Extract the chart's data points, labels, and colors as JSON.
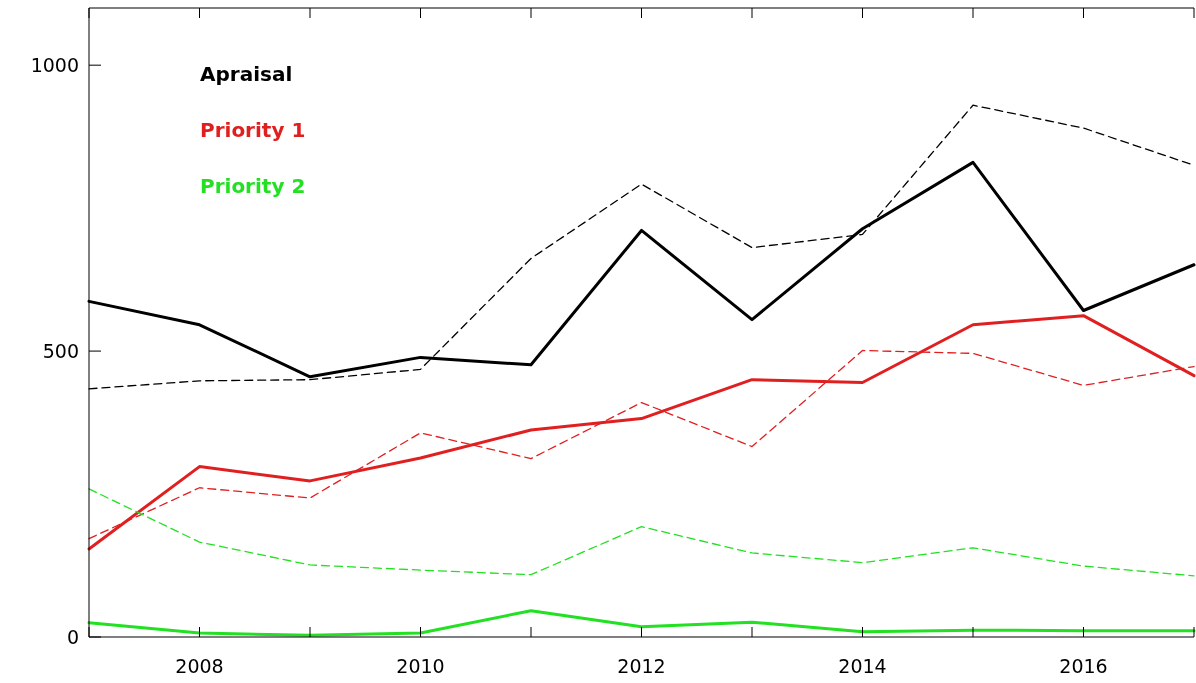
{
  "chart_data": {
    "type": "line",
    "x": [
      2007,
      2008,
      2009,
      2010,
      2011,
      2012,
      2013,
      2014,
      2015,
      2016,
      2017
    ],
    "series": [
      {
        "name": "Apraisal",
        "color": "#000000",
        "line_style": "solid",
        "values": [
          587,
          546,
          455,
          489,
          476,
          711,
          555,
          714,
          830,
          571,
          651
        ]
      },
      {
        "color": "#000000",
        "line_style": "dashed",
        "values": [
          434,
          448,
          450,
          468,
          662,
          792,
          681,
          704,
          930,
          890,
          825
        ]
      },
      {
        "name": "Priority 1",
        "color": "#e02020",
        "line_style": "solid",
        "values": [
          154,
          298,
          273,
          313,
          362,
          382,
          450,
          445,
          546,
          562,
          457
        ]
      },
      {
        "color": "#e02020",
        "line_style": "dashed",
        "values": [
          172,
          261,
          243,
          357,
          312,
          410,
          333,
          501,
          496,
          440,
          473
        ]
      },
      {
        "name": "Priority 2",
        "color": "#22e022",
        "line_style": "solid",
        "values": [
          25,
          7,
          3,
          7,
          46,
          18,
          26,
          9,
          12,
          11,
          11
        ]
      },
      {
        "color": "#22e022",
        "line_style": "dashed",
        "values": [
          259,
          166,
          126,
          117,
          109,
          193,
          147,
          130,
          156,
          124,
          107
        ]
      }
    ],
    "xlim": [
      2007,
      2017
    ],
    "xticks": [
      {
        "value": 2007,
        "label": null
      },
      2008,
      {
        "value": 2009,
        "label": null
      },
      2010,
      {
        "value": 2011,
        "label": null
      },
      2012,
      {
        "value": 2013,
        "label": null
      },
      2014,
      {
        "value": 2015,
        "label": null
      },
      2016,
      {
        "value": 2017,
        "label": null
      }
    ],
    "ylim": [
      0,
      1100
    ],
    "yticks": [
      0,
      500,
      1000
    ],
    "legend": "top left",
    "grid": false
  }
}
